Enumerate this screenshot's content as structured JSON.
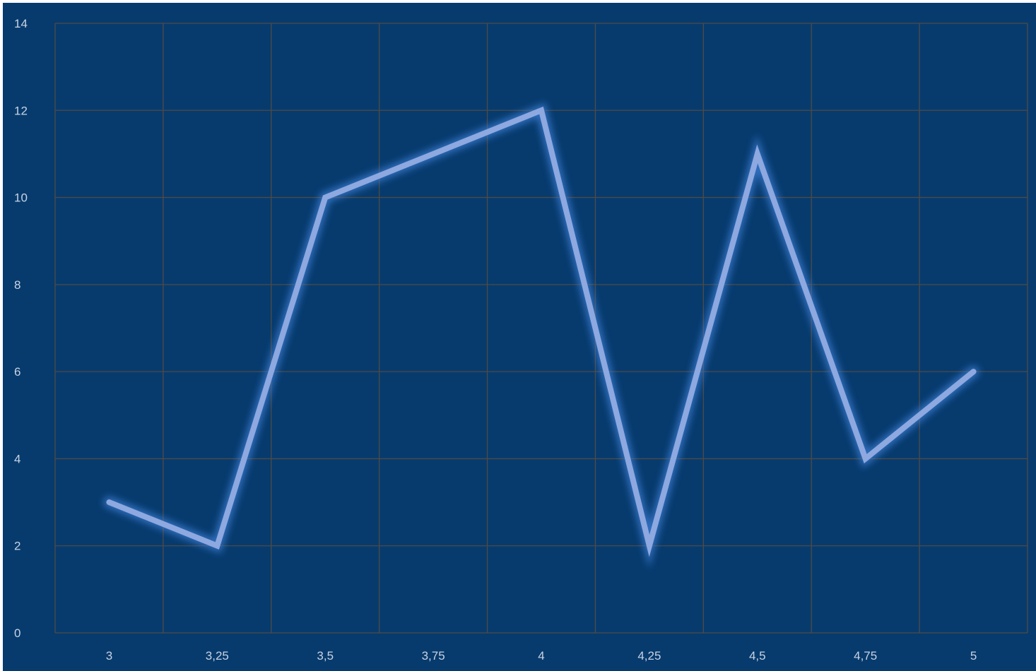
{
  "colors": {
    "background": "#073b6e",
    "grid": "#4f4b44",
    "line": "#8ea8e0",
    "glow": "#3d7fd6",
    "tick_text": "#c9d3e2"
  },
  "chart_data": {
    "type": "line",
    "categories": [
      "3",
      "3,25",
      "3,5",
      "3,75",
      "4",
      "4,25",
      "4,5",
      "4,75",
      "5"
    ],
    "x": [
      3,
      3.25,
      3.5,
      3.75,
      4,
      4.25,
      4.5,
      4.75,
      5
    ],
    "series": [
      {
        "values": [
          3,
          2,
          10,
          11,
          12,
          2,
          11,
          4,
          6
        ]
      }
    ],
    "y_ticks": [
      0,
      2,
      4,
      6,
      8,
      10,
      12,
      14
    ],
    "ylim": [
      0,
      14
    ],
    "title": "",
    "xlabel": "",
    "ylabel": "",
    "grid": true,
    "legend": "none"
  }
}
